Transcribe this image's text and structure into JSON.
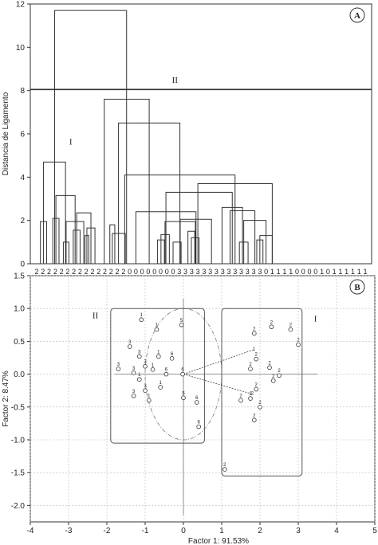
{
  "chart_data": [
    {
      "panel": "A",
      "type": "dendrogram",
      "ylabel": "Distancia de Ligamento",
      "ylim": [
        0,
        12
      ],
      "yticks": [
        0,
        2,
        4,
        6,
        8,
        10,
        12
      ],
      "cut_height": 8.05,
      "cluster_labels": [
        {
          "label": "I",
          "x": 5.5,
          "y": 5.5
        },
        {
          "label": "II",
          "x": 22.3,
          "y": 8.35
        }
      ],
      "leaves": [
        "2",
        "2",
        "2",
        "2",
        "2",
        "2",
        "2",
        "2",
        "2",
        "2",
        "2",
        "2",
        "2",
        "2",
        "2",
        "0",
        "0",
        "0",
        "0",
        "0",
        "0",
        "0",
        "0",
        "3",
        "3",
        "3",
        "3",
        "3",
        "3",
        "3",
        "3",
        "3",
        "3",
        "3",
        "3",
        "3",
        "3",
        "0",
        "1",
        "1",
        "1",
        "1",
        "0",
        "0",
        "0",
        "0",
        "1",
        "0",
        "1",
        "1",
        "1",
        "1",
        "1",
        "1"
      ],
      "linkage": [
        {
          "x1": 0.6,
          "x2": 1.6,
          "h": 1.95
        },
        {
          "x1": 2.6,
          "x2": 3.6,
          "h": 2.1
        },
        {
          "x1": 4.3,
          "x2": 5.2,
          "h": 1.0
        },
        {
          "x1": 5.9,
          "x2": 7.0,
          "h": 1.55
        },
        {
          "x1": 7.8,
          "x2": 8.4,
          "h": 1.3
        },
        {
          "x1": 8.1,
          "x2": 9.4,
          "h": 1.65
        },
        {
          "x1": 6.45,
          "x2": 8.75,
          "h": 2.35
        },
        {
          "x1": 4.75,
          "x2": 7.6,
          "h": 1.95
        },
        {
          "x1": 3.1,
          "x2": 6.2,
          "h": 3.15
        },
        {
          "x1": 1.1,
          "x2": 4.65,
          "h": 4.7
        },
        {
          "x1": 11.8,
          "x2": 12.6,
          "h": 1.8
        },
        {
          "x1": 12.2,
          "x2": 14.3,
          "h": 1.4
        },
        {
          "x1": 19.5,
          "x2": 20.6,
          "h": 1.1
        },
        {
          "x1": 20.05,
          "x2": 21.4,
          "h": 1.35
        },
        {
          "x1": 22.0,
          "x2": 23.3,
          "h": 1.0
        },
        {
          "x1": 24.4,
          "x2": 25.5,
          "h": 1.5
        },
        {
          "x1": 24.95,
          "x2": 26.2,
          "h": 1.2
        },
        {
          "x1": 20.7,
          "x2": 25.6,
          "h": 1.95
        },
        {
          "x1": 23.15,
          "x2": 28.2,
          "h": 2.05
        },
        {
          "x1": 16.0,
          "x2": 25.7,
          "h": 2.4
        },
        {
          "x1": 32.7,
          "x2": 34.1,
          "h": 1.0
        },
        {
          "x1": 35.5,
          "x2": 36.5,
          "h": 1.1
        },
        {
          "x1": 36.0,
          "x2": 38.0,
          "h": 1.3
        },
        {
          "x1": 33.4,
          "x2": 37.0,
          "h": 2.0
        },
        {
          "x1": 31.2,
          "x2": 35.2,
          "h": 2.45
        },
        {
          "x1": 29.9,
          "x2": 33.2,
          "h": 2.6
        },
        {
          "x1": 20.85,
          "x2": 31.55,
          "h": 3.3
        },
        {
          "x1": 26.0,
          "x2": 38.0,
          "h": 3.7
        },
        {
          "x1": 14.2,
          "x2": 32.0,
          "h": 4.1
        },
        {
          "x1": 13.2,
          "x2": 23.1,
          "h": 6.5
        },
        {
          "x1": 10.9,
          "x2": 18.15,
          "h": 7.6
        },
        {
          "x1": 2.9,
          "x2": 14.5,
          "h": 11.7
        }
      ]
    },
    {
      "panel": "B",
      "type": "scatter",
      "xlabel": "Factor 1: 91.53%",
      "ylabel": "Factor 2:  8.47%",
      "xlim": [
        -4,
        5
      ],
      "ylim": [
        -2.25,
        1.5
      ],
      "xticks": [
        -4,
        -3,
        -2,
        -1,
        0,
        1,
        2,
        3,
        4,
        5
      ],
      "yticks": [
        -2.0,
        -1.5,
        -1.0,
        -0.5,
        0.0,
        0.5,
        1.0,
        1.5
      ],
      "ytick_labels": [
        "-2.0",
        "-1.5",
        "-1.0",
        "-0.5",
        "0.0",
        "0.5",
        "1.0",
        "1.5"
      ],
      "grid": true,
      "group_labels": [
        {
          "label": "II",
          "x": -2.3,
          "y": 0.85
        },
        {
          "label": "I",
          "x": 3.45,
          "y": 0.8
        }
      ],
      "groups": [
        {
          "label": "II",
          "x0": -1.9,
          "x1": 0.55,
          "y0": -1.05,
          "y1": 1.0
        },
        {
          "label": "I",
          "x0": 1.0,
          "x1": 3.1,
          "y0": -1.55,
          "y1": 1.0
        }
      ],
      "circle_radius": 1.0,
      "vectors": [
        {
          "label": "1",
          "x": 1.82,
          "y": 0.37
        },
        {
          "label": "2",
          "x": 1.78,
          "y": -0.3
        }
      ],
      "points": [
        {
          "label": "1",
          "x": -1.1,
          "y": 0.83
        },
        {
          "label": "1",
          "x": -0.7,
          "y": 0.68
        },
        {
          "label": "3",
          "x": -1.4,
          "y": 0.42
        },
        {
          "label": "3",
          "x": -1.7,
          "y": 0.08
        },
        {
          "label": "3",
          "x": -1.15,
          "y": 0.27
        },
        {
          "label": "3",
          "x": -1.3,
          "y": 0.02
        },
        {
          "label": "3",
          "x": -1.0,
          "y": 0.12
        },
        {
          "label": "1",
          "x": -0.65,
          "y": 0.27
        },
        {
          "label": "6",
          "x": -0.3,
          "y": 0.24
        },
        {
          "label": "1",
          "x": -0.8,
          "y": 0.07
        },
        {
          "label": "1",
          "x": -1.15,
          "y": -0.08
        },
        {
          "label": "3",
          "x": -1.3,
          "y": -0.33
        },
        {
          "label": "3",
          "x": -1.0,
          "y": -0.25
        },
        {
          "label": "1",
          "x": -0.6,
          "y": -0.2
        },
        {
          "label": "1",
          "x": -0.9,
          "y": -0.4
        },
        {
          "label": "6",
          "x": -0.45,
          "y": 0.0
        },
        {
          "label": "6",
          "x": -0.02,
          "y": 0.0
        },
        {
          "label": "5",
          "x": 0.0,
          "y": -0.36
        },
        {
          "label": "6",
          "x": 0.35,
          "y": -0.43
        },
        {
          "label": "6",
          "x": 0.4,
          "y": -0.8
        },
        {
          "label": "2",
          "x": 2.3,
          "y": 0.72
        },
        {
          "label": "2",
          "x": 1.85,
          "y": 0.62
        },
        {
          "label": "2",
          "x": 2.8,
          "y": 0.68
        },
        {
          "label": "2",
          "x": 3.0,
          "y": 0.45
        },
        {
          "label": "2",
          "x": 1.9,
          "y": 0.23
        },
        {
          "label": "2",
          "x": 1.75,
          "y": 0.08
        },
        {
          "label": "2",
          "x": 2.25,
          "y": 0.1
        },
        {
          "label": "2",
          "x": 2.5,
          "y": -0.02
        },
        {
          "label": "2",
          "x": 2.35,
          "y": -0.1
        },
        {
          "label": "2",
          "x": 1.9,
          "y": -0.23
        },
        {
          "label": "2",
          "x": 1.75,
          "y": -0.37
        },
        {
          "label": "2",
          "x": 1.5,
          "y": -0.4
        },
        {
          "label": "2",
          "x": 2.0,
          "y": -0.5
        },
        {
          "label": "2",
          "x": 1.85,
          "y": -0.7
        },
        {
          "label": "2",
          "x": 1.08,
          "y": -1.45
        },
        {
          "label": "5",
          "x": -0.05,
          "y": 0.75
        }
      ]
    }
  ]
}
